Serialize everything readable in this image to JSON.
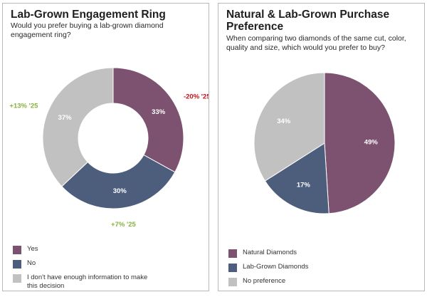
{
  "colors": {
    "yes": "#7d5270",
    "no": "#4d5e7c",
    "none": "#c1c1c1",
    "negative": "#c0111c",
    "positive": "#87b23e"
  },
  "panel_left": {
    "title": "Lab-Grown Engagement Ring",
    "subtitle": "Would you prefer buying a lab-grown diamond engagement ring?",
    "annotations": {
      "yes": "-20% '25",
      "no": "+7% '25",
      "none": "+13% '25"
    },
    "legend": [
      {
        "label": "Yes",
        "color": "#7d5270"
      },
      {
        "label": "No",
        "color": "#4d5e7c"
      },
      {
        "label": "I don't have enough information to make this decision",
        "color": "#c1c1c1"
      }
    ]
  },
  "panel_right": {
    "title": "Natural & Lab-Grown Purchase Preference",
    "subtitle": "When comparing two diamonds of the same cut, color, quality and size, which would you prefer to buy?",
    "legend": [
      {
        "label": "Natural Diamonds",
        "color": "#7d5270"
      },
      {
        "label": "Lab-Grown Diamonds",
        "color": "#4d5e7c"
      },
      {
        "label": "No preference",
        "color": "#c1c1c1"
      }
    ]
  },
  "chart_data": [
    {
      "type": "pie",
      "title": "Lab-Grown Engagement Ring",
      "categories": [
        "Yes",
        "No",
        "I don't have enough information to make this decision"
      ],
      "values": [
        33,
        30,
        37
      ],
      "value_labels": [
        "33%",
        "30%",
        "37%"
      ],
      "annotations": [
        "-20% '25",
        "+7% '25",
        "+13% '25"
      ],
      "donut": true
    },
    {
      "type": "pie",
      "title": "Natural & Lab-Grown Purchase Preference",
      "categories": [
        "Natural Diamonds",
        "Lab-Grown Diamonds",
        "No preference"
      ],
      "values": [
        49,
        17,
        34
      ],
      "value_labels": [
        "49%",
        "17%",
        "34%"
      ],
      "donut": false
    }
  ]
}
